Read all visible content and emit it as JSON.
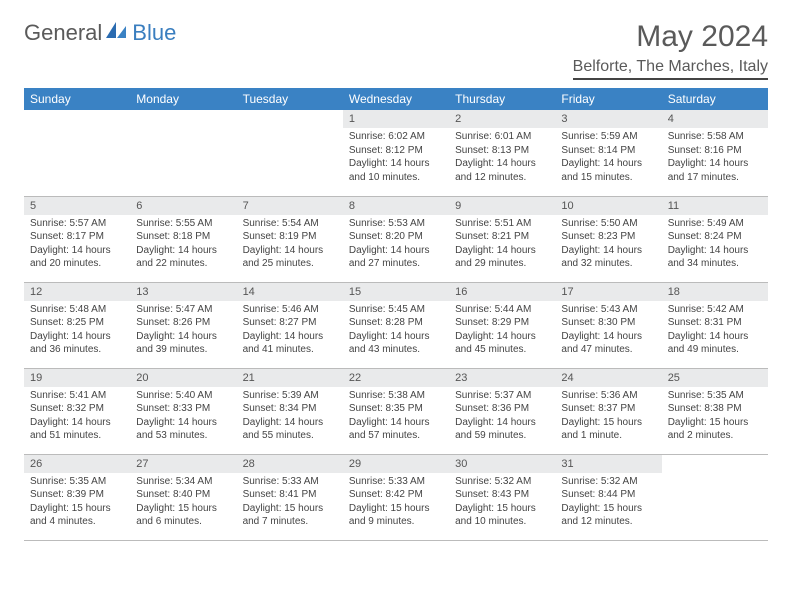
{
  "brand": {
    "part1": "General",
    "part2": "Blue"
  },
  "title": "May 2024",
  "location": "Belforte, The Marches, Italy",
  "weekdays": [
    "Sunday",
    "Monday",
    "Tuesday",
    "Wednesday",
    "Thursday",
    "Friday",
    "Saturday"
  ],
  "colors": {
    "header_bg": "#3a82c4",
    "header_text": "#ffffff",
    "daynum_bg": "#e9eaeb",
    "text": "#444444",
    "title": "#5a5a5a"
  },
  "weeks": [
    [
      {
        "n": "",
        "l1": "",
        "l2": "",
        "l3": "",
        "l4": "",
        "empty": true
      },
      {
        "n": "",
        "l1": "",
        "l2": "",
        "l3": "",
        "l4": "",
        "empty": true
      },
      {
        "n": "",
        "l1": "",
        "l2": "",
        "l3": "",
        "l4": "",
        "empty": true
      },
      {
        "n": "1",
        "l1": "Sunrise: 6:02 AM",
        "l2": "Sunset: 8:12 PM",
        "l3": "Daylight: 14 hours",
        "l4": "and 10 minutes."
      },
      {
        "n": "2",
        "l1": "Sunrise: 6:01 AM",
        "l2": "Sunset: 8:13 PM",
        "l3": "Daylight: 14 hours",
        "l4": "and 12 minutes."
      },
      {
        "n": "3",
        "l1": "Sunrise: 5:59 AM",
        "l2": "Sunset: 8:14 PM",
        "l3": "Daylight: 14 hours",
        "l4": "and 15 minutes."
      },
      {
        "n": "4",
        "l1": "Sunrise: 5:58 AM",
        "l2": "Sunset: 8:16 PM",
        "l3": "Daylight: 14 hours",
        "l4": "and 17 minutes."
      }
    ],
    [
      {
        "n": "5",
        "l1": "Sunrise: 5:57 AM",
        "l2": "Sunset: 8:17 PM",
        "l3": "Daylight: 14 hours",
        "l4": "and 20 minutes."
      },
      {
        "n": "6",
        "l1": "Sunrise: 5:55 AM",
        "l2": "Sunset: 8:18 PM",
        "l3": "Daylight: 14 hours",
        "l4": "and 22 minutes."
      },
      {
        "n": "7",
        "l1": "Sunrise: 5:54 AM",
        "l2": "Sunset: 8:19 PM",
        "l3": "Daylight: 14 hours",
        "l4": "and 25 minutes."
      },
      {
        "n": "8",
        "l1": "Sunrise: 5:53 AM",
        "l2": "Sunset: 8:20 PM",
        "l3": "Daylight: 14 hours",
        "l4": "and 27 minutes."
      },
      {
        "n": "9",
        "l1": "Sunrise: 5:51 AM",
        "l2": "Sunset: 8:21 PM",
        "l3": "Daylight: 14 hours",
        "l4": "and 29 minutes."
      },
      {
        "n": "10",
        "l1": "Sunrise: 5:50 AM",
        "l2": "Sunset: 8:23 PM",
        "l3": "Daylight: 14 hours",
        "l4": "and 32 minutes."
      },
      {
        "n": "11",
        "l1": "Sunrise: 5:49 AM",
        "l2": "Sunset: 8:24 PM",
        "l3": "Daylight: 14 hours",
        "l4": "and 34 minutes."
      }
    ],
    [
      {
        "n": "12",
        "l1": "Sunrise: 5:48 AM",
        "l2": "Sunset: 8:25 PM",
        "l3": "Daylight: 14 hours",
        "l4": "and 36 minutes."
      },
      {
        "n": "13",
        "l1": "Sunrise: 5:47 AM",
        "l2": "Sunset: 8:26 PM",
        "l3": "Daylight: 14 hours",
        "l4": "and 39 minutes."
      },
      {
        "n": "14",
        "l1": "Sunrise: 5:46 AM",
        "l2": "Sunset: 8:27 PM",
        "l3": "Daylight: 14 hours",
        "l4": "and 41 minutes."
      },
      {
        "n": "15",
        "l1": "Sunrise: 5:45 AM",
        "l2": "Sunset: 8:28 PM",
        "l3": "Daylight: 14 hours",
        "l4": "and 43 minutes."
      },
      {
        "n": "16",
        "l1": "Sunrise: 5:44 AM",
        "l2": "Sunset: 8:29 PM",
        "l3": "Daylight: 14 hours",
        "l4": "and 45 minutes."
      },
      {
        "n": "17",
        "l1": "Sunrise: 5:43 AM",
        "l2": "Sunset: 8:30 PM",
        "l3": "Daylight: 14 hours",
        "l4": "and 47 minutes."
      },
      {
        "n": "18",
        "l1": "Sunrise: 5:42 AM",
        "l2": "Sunset: 8:31 PM",
        "l3": "Daylight: 14 hours",
        "l4": "and 49 minutes."
      }
    ],
    [
      {
        "n": "19",
        "l1": "Sunrise: 5:41 AM",
        "l2": "Sunset: 8:32 PM",
        "l3": "Daylight: 14 hours",
        "l4": "and 51 minutes."
      },
      {
        "n": "20",
        "l1": "Sunrise: 5:40 AM",
        "l2": "Sunset: 8:33 PM",
        "l3": "Daylight: 14 hours",
        "l4": "and 53 minutes."
      },
      {
        "n": "21",
        "l1": "Sunrise: 5:39 AM",
        "l2": "Sunset: 8:34 PM",
        "l3": "Daylight: 14 hours",
        "l4": "and 55 minutes."
      },
      {
        "n": "22",
        "l1": "Sunrise: 5:38 AM",
        "l2": "Sunset: 8:35 PM",
        "l3": "Daylight: 14 hours",
        "l4": "and 57 minutes."
      },
      {
        "n": "23",
        "l1": "Sunrise: 5:37 AM",
        "l2": "Sunset: 8:36 PM",
        "l3": "Daylight: 14 hours",
        "l4": "and 59 minutes."
      },
      {
        "n": "24",
        "l1": "Sunrise: 5:36 AM",
        "l2": "Sunset: 8:37 PM",
        "l3": "Daylight: 15 hours",
        "l4": "and 1 minute."
      },
      {
        "n": "25",
        "l1": "Sunrise: 5:35 AM",
        "l2": "Sunset: 8:38 PM",
        "l3": "Daylight: 15 hours",
        "l4": "and 2 minutes."
      }
    ],
    [
      {
        "n": "26",
        "l1": "Sunrise: 5:35 AM",
        "l2": "Sunset: 8:39 PM",
        "l3": "Daylight: 15 hours",
        "l4": "and 4 minutes."
      },
      {
        "n": "27",
        "l1": "Sunrise: 5:34 AM",
        "l2": "Sunset: 8:40 PM",
        "l3": "Daylight: 15 hours",
        "l4": "and 6 minutes."
      },
      {
        "n": "28",
        "l1": "Sunrise: 5:33 AM",
        "l2": "Sunset: 8:41 PM",
        "l3": "Daylight: 15 hours",
        "l4": "and 7 minutes."
      },
      {
        "n": "29",
        "l1": "Sunrise: 5:33 AM",
        "l2": "Sunset: 8:42 PM",
        "l3": "Daylight: 15 hours",
        "l4": "and 9 minutes."
      },
      {
        "n": "30",
        "l1": "Sunrise: 5:32 AM",
        "l2": "Sunset: 8:43 PM",
        "l3": "Daylight: 15 hours",
        "l4": "and 10 minutes."
      },
      {
        "n": "31",
        "l1": "Sunrise: 5:32 AM",
        "l2": "Sunset: 8:44 PM",
        "l3": "Daylight: 15 hours",
        "l4": "and 12 minutes."
      },
      {
        "n": "",
        "l1": "",
        "l2": "",
        "l3": "",
        "l4": "",
        "empty": true
      }
    ]
  ]
}
